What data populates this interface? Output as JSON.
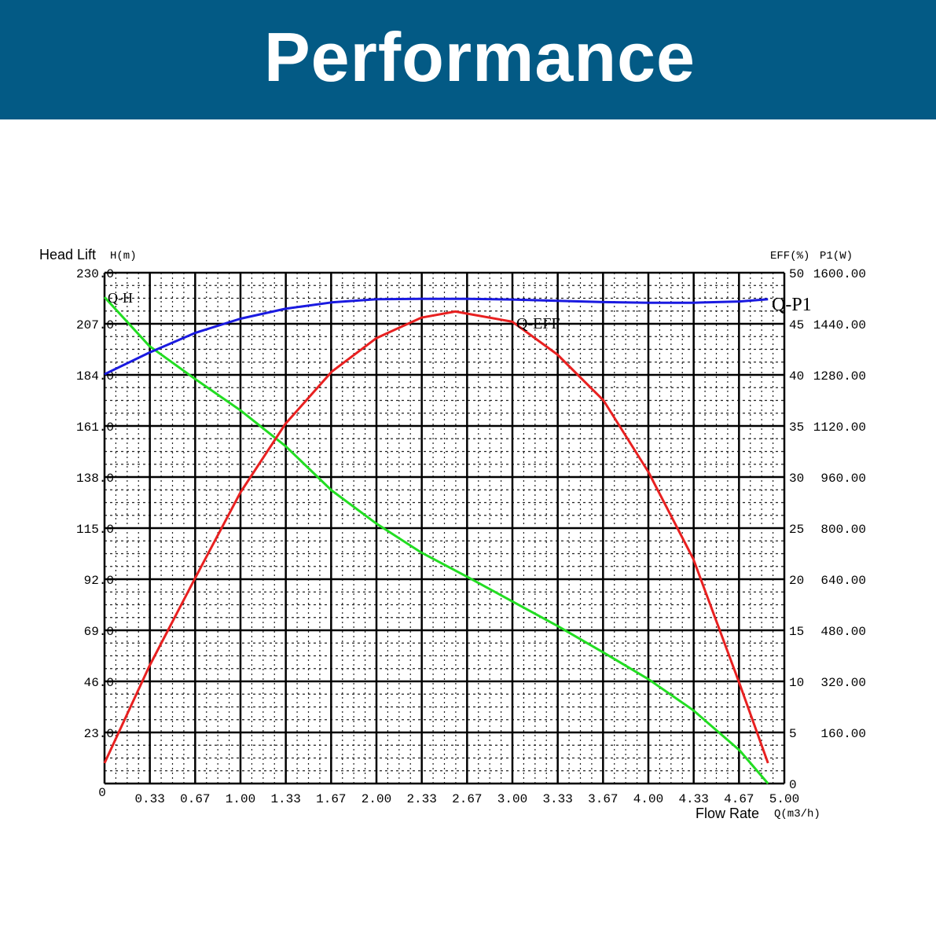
{
  "header": {
    "title": "Performance",
    "color": "#035a85"
  },
  "chart_data": {
    "type": "line",
    "title": "Performance",
    "xlabel": "Flow Rate",
    "xunit": "Q(m3/h)",
    "ylabel_left": "Head Lift",
    "yunit_left": "H(m)",
    "ylabel_right_eff": "EFF(%)",
    "ylabel_right_p1": "P1(W)",
    "xlim": [
      0,
      5
    ],
    "ylim_left": [
      0,
      230
    ],
    "ylim_eff": [
      0,
      50
    ],
    "ylim_p1": [
      0,
      1600
    ],
    "grid": true,
    "x_ticks": [
      "0",
      "0.33",
      "0.67",
      "1.00",
      "1.33",
      "1.67",
      "2.00",
      "2.33",
      "2.67",
      "3.00",
      "3.33",
      "3.67",
      "4.00",
      "4.33",
      "4.67",
      "5.00"
    ],
    "y_ticks_left": [
      "230.0",
      "207.0",
      "184.0",
      "161.0",
      "138.0",
      "115.0",
      "92.0",
      "69.0",
      "46.0",
      "23.0"
    ],
    "y_ticks_eff": [
      "50",
      "45",
      "40",
      "35",
      "30",
      "25",
      "20",
      "15",
      "10",
      "5",
      "0"
    ],
    "y_ticks_p1": [
      "1600.00",
      "1440.00",
      "1280.00",
      "1120.00",
      "960.00",
      "800.00",
      "640.00",
      "480.00",
      "320.00",
      "160.00"
    ],
    "series": [
      {
        "name": "Q-H",
        "axis": "left",
        "color": "#22dd22",
        "x": [
          0,
          0.33,
          0.67,
          1.0,
          1.33,
          1.67,
          2.0,
          2.33,
          2.67,
          3.0,
          3.33,
          3.67,
          4.0,
          4.33,
          4.67,
          4.88
        ],
        "y": [
          219,
          197,
          182,
          168,
          152,
          132,
          117,
          104,
          93,
          82,
          71,
          59,
          47,
          33,
          15,
          0
        ]
      },
      {
        "name": "Q-EFF",
        "axis": "eff",
        "color": "#e82020",
        "x": [
          0,
          0.33,
          0.67,
          1.0,
          1.33,
          1.67,
          2.0,
          2.33,
          2.58,
          3.0,
          3.33,
          3.67,
          4.0,
          4.33,
          4.67,
          4.88
        ],
        "y": [
          2,
          11.5,
          20.2,
          28.5,
          35.2,
          40.3,
          43.6,
          45.6,
          46.2,
          45.2,
          42,
          37.5,
          30.5,
          22,
          9.8,
          2
        ]
      },
      {
        "name": "Q-P1",
        "axis": "p1",
        "color": "#1a1ae0",
        "x": [
          0,
          0.33,
          0.67,
          1.0,
          1.33,
          1.67,
          2.0,
          2.33,
          2.67,
          3.0,
          3.33,
          3.67,
          4.0,
          4.33,
          4.67,
          4.88
        ],
        "y": [
          1282,
          1350,
          1412,
          1456,
          1487,
          1507,
          1517,
          1518,
          1518,
          1516,
          1512,
          1508,
          1506,
          1506,
          1510,
          1517
        ]
      }
    ]
  }
}
